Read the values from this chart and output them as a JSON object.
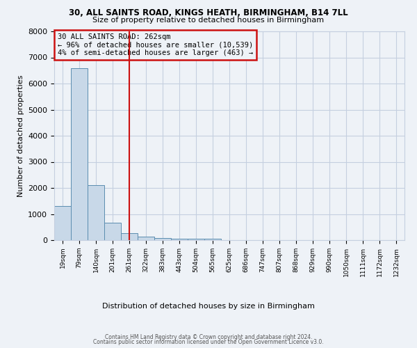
{
  "title1": "30, ALL SAINTS ROAD, KINGS HEATH, BIRMINGHAM, B14 7LL",
  "title2": "Size of property relative to detached houses in Birmingham",
  "xlabel": "Distribution of detached houses by size in Birmingham",
  "ylabel": "Number of detached properties",
  "bin_labels": [
    "19sqm",
    "79sqm",
    "140sqm",
    "201sqm",
    "261sqm",
    "322sqm",
    "383sqm",
    "443sqm",
    "504sqm",
    "565sqm",
    "625sqm",
    "686sqm",
    "747sqm",
    "807sqm",
    "868sqm",
    "929sqm",
    "990sqm",
    "1050sqm",
    "1111sqm",
    "1172sqm",
    "1232sqm"
  ],
  "bar_heights": [
    1300,
    6600,
    2100,
    680,
    270,
    130,
    90,
    55,
    55,
    55,
    0,
    0,
    0,
    0,
    0,
    0,
    0,
    0,
    0,
    0,
    0
  ],
  "property_bin_index": 4,
  "bar_color": "#c8d8e8",
  "bar_edge_color": "#5b8db0",
  "vline_color": "#cc1111",
  "annotation_text": "30 ALL SAINTS ROAD: 262sqm\n← 96% of detached houses are smaller (10,539)\n4% of semi-detached houses are larger (463) →",
  "annotation_box_color": "#cc1111",
  "ylim": [
    0,
    8000
  ],
  "yticks": [
    0,
    1000,
    2000,
    3000,
    4000,
    5000,
    6000,
    7000,
    8000
  ],
  "footer1": "Contains HM Land Registry data © Crown copyright and database right 2024.",
  "footer2": "Contains public sector information licensed under the Open Government Licence v3.0.",
  "bg_color": "#eef2f7",
  "grid_color": "#c5cfe0"
}
